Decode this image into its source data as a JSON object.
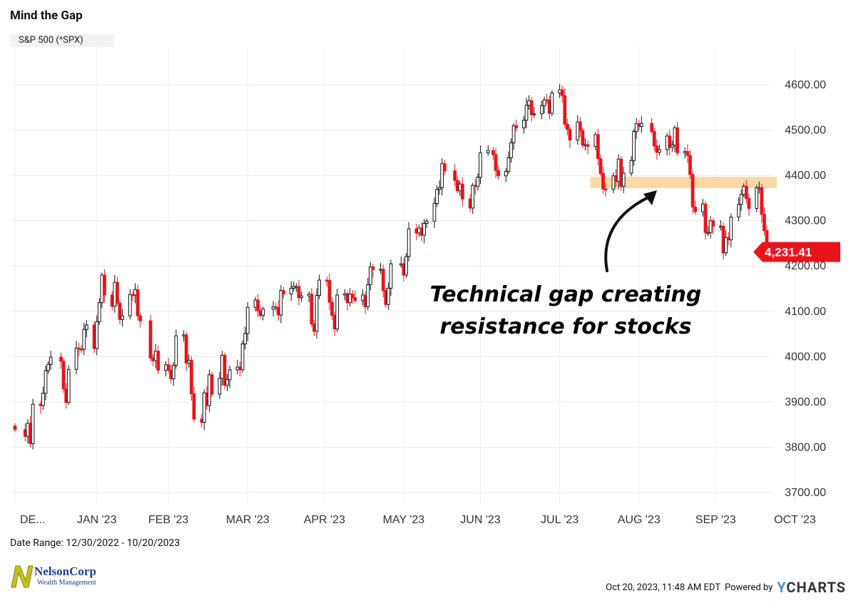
{
  "title": "Mind the Gap",
  "series_label": "S&P 500 (^SPX)",
  "date_range_text": "Date Range: 12/30/2022 - 10/20/2023",
  "footer": {
    "timestamp": "Oct 20, 2023, 11:48 AM EDT",
    "powered_by": "Powered by",
    "brand_y": "Y",
    "brand_rest": "CHARTS"
  },
  "logo": {
    "name": "NelsonCorp",
    "subtitle": "Wealth Management"
  },
  "annotation": {
    "line1": "Technical gap creating",
    "line2": "resistance for stocks"
  },
  "colors": {
    "up": "#111111",
    "down": "#e8141c",
    "gap_zone": "#fbd9a6",
    "last_price_bg": "#e8141c"
  },
  "chart_data": {
    "type": "candlestick",
    "title": "Mind the Gap",
    "series_name": "S&P 500 (^SPX)",
    "ylim": [
      3670,
      4680
    ],
    "y_ticks": [
      "3700.00",
      "3800.00",
      "3900.00",
      "4000.00",
      "4100.00",
      "4200.00",
      "4300.00",
      "4400.00",
      "4500.00",
      "4600.00"
    ],
    "x_ticks": [
      "DE...",
      "JAN '23",
      "FEB '23",
      "MAR '23",
      "APR '23",
      "MAY '23",
      "JUN '23",
      "JUL '23",
      "AUG '23",
      "SEP '23",
      "OCT '23"
    ],
    "last_price": "4,231.41",
    "gap_zone": {
      "low": 4372,
      "high": 4397,
      "start": "2023-08-17",
      "end": "2023-10-20"
    },
    "grid": true,
    "annotation_text": "Technical gap creating resistance for stocks",
    "closes": [
      [
        "2022-12-30",
        3839
      ],
      [
        "2023-01-03",
        3824
      ],
      [
        "2023-01-04",
        3853
      ],
      [
        "2023-01-05",
        3808
      ],
      [
        "2023-01-06",
        3895
      ],
      [
        "2023-01-09",
        3892
      ],
      [
        "2023-01-10",
        3919
      ],
      [
        "2023-01-11",
        3969
      ],
      [
        "2023-01-12",
        3983
      ],
      [
        "2023-01-13",
        3999
      ],
      [
        "2023-01-17",
        3990
      ],
      [
        "2023-01-18",
        3929
      ],
      [
        "2023-01-19",
        3899
      ],
      [
        "2023-01-20",
        3972
      ],
      [
        "2023-01-23",
        4019
      ],
      [
        "2023-01-24",
        4017
      ],
      [
        "2023-01-25",
        4016
      ],
      [
        "2023-01-26",
        4060
      ],
      [
        "2023-01-27",
        4070
      ],
      [
        "2023-01-30",
        4018
      ],
      [
        "2023-01-31",
        4077
      ],
      [
        "2023-02-01",
        4119
      ],
      [
        "2023-02-02",
        4180
      ],
      [
        "2023-02-03",
        4136
      ],
      [
        "2023-02-06",
        4111
      ],
      [
        "2023-02-07",
        4164
      ],
      [
        "2023-02-08",
        4118
      ],
      [
        "2023-02-09",
        4082
      ],
      [
        "2023-02-10",
        4090
      ],
      [
        "2023-02-13",
        4137
      ],
      [
        "2023-02-14",
        4136
      ],
      [
        "2023-02-15",
        4148
      ],
      [
        "2023-02-16",
        4090
      ],
      [
        "2023-02-17",
        4079
      ],
      [
        "2023-02-21",
        3997
      ],
      [
        "2023-02-22",
        3991
      ],
      [
        "2023-02-23",
        4012
      ],
      [
        "2023-02-24",
        3970
      ],
      [
        "2023-02-27",
        3982
      ],
      [
        "2023-02-28",
        3970
      ],
      [
        "2023-03-01",
        3951
      ],
      [
        "2023-03-02",
        3981
      ],
      [
        "2023-03-03",
        4046
      ],
      [
        "2023-03-06",
        4048
      ],
      [
        "2023-03-07",
        3986
      ],
      [
        "2023-03-08",
        3992
      ],
      [
        "2023-03-09",
        3918
      ],
      [
        "2023-03-10",
        3862
      ],
      [
        "2023-03-13",
        3855
      ],
      [
        "2023-03-14",
        3920
      ],
      [
        "2023-03-15",
        3892
      ],
      [
        "2023-03-16",
        3960
      ],
      [
        "2023-03-17",
        3917
      ],
      [
        "2023-03-20",
        3952
      ],
      [
        "2023-03-21",
        4003
      ],
      [
        "2023-03-22",
        3937
      ],
      [
        "2023-03-23",
        3949
      ],
      [
        "2023-03-24",
        3971
      ],
      [
        "2023-03-27",
        3977
      ],
      [
        "2023-03-28",
        3971
      ],
      [
        "2023-03-29",
        4028
      ],
      [
        "2023-03-30",
        4051
      ],
      [
        "2023-03-31",
        4109
      ],
      [
        "2023-04-03",
        4125
      ],
      [
        "2023-04-04",
        4101
      ],
      [
        "2023-04-05",
        4091
      ],
      [
        "2023-04-06",
        4105
      ],
      [
        "2023-04-10",
        4110
      ],
      [
        "2023-04-11",
        4108
      ],
      [
        "2023-04-12",
        4092
      ],
      [
        "2023-04-13",
        4146
      ],
      [
        "2023-04-14",
        4138
      ],
      [
        "2023-04-17",
        4151
      ],
      [
        "2023-04-18",
        4155
      ],
      [
        "2023-04-19",
        4155
      ],
      [
        "2023-04-20",
        4130
      ],
      [
        "2023-04-21",
        4134
      ],
      [
        "2023-04-24",
        4138
      ],
      [
        "2023-04-25",
        4072
      ],
      [
        "2023-04-26",
        4056
      ],
      [
        "2023-04-27",
        4135
      ],
      [
        "2023-04-28",
        4169
      ],
      [
        "2023-05-01",
        4168
      ],
      [
        "2023-05-02",
        4120
      ],
      [
        "2023-05-03",
        4091
      ],
      [
        "2023-05-04",
        4061
      ],
      [
        "2023-05-05",
        4136
      ],
      [
        "2023-05-08",
        4139
      ],
      [
        "2023-05-09",
        4119
      ],
      [
        "2023-05-10",
        4138
      ],
      [
        "2023-05-11",
        4130
      ],
      [
        "2023-05-12",
        4124
      ],
      [
        "2023-05-15",
        4136
      ],
      [
        "2023-05-16",
        4110
      ],
      [
        "2023-05-17",
        4159
      ],
      [
        "2023-05-18",
        4198
      ],
      [
        "2023-05-19",
        4192
      ],
      [
        "2023-05-22",
        4193
      ],
      [
        "2023-05-23",
        4146
      ],
      [
        "2023-05-24",
        4115
      ],
      [
        "2023-05-25",
        4151
      ],
      [
        "2023-05-26",
        4205
      ],
      [
        "2023-05-30",
        4205
      ],
      [
        "2023-05-31",
        4180
      ],
      [
        "2023-06-01",
        4221
      ],
      [
        "2023-06-02",
        4282
      ],
      [
        "2023-06-05",
        4273
      ],
      [
        "2023-06-06",
        4284
      ],
      [
        "2023-06-07",
        4268
      ],
      [
        "2023-06-08",
        4294
      ],
      [
        "2023-06-09",
        4299
      ],
      [
        "2023-06-12",
        4338
      ],
      [
        "2023-06-13",
        4369
      ],
      [
        "2023-06-14",
        4373
      ],
      [
        "2023-06-15",
        4426
      ],
      [
        "2023-06-16",
        4410
      ],
      [
        "2023-06-20",
        4389
      ],
      [
        "2023-06-21",
        4366
      ],
      [
        "2023-06-22",
        4381
      ],
      [
        "2023-06-23",
        4348
      ],
      [
        "2023-06-26",
        4328
      ],
      [
        "2023-06-27",
        4378
      ],
      [
        "2023-06-28",
        4376
      ],
      [
        "2023-06-29",
        4396
      ],
      [
        "2023-06-30",
        4450
      ],
      [
        "2023-07-03",
        4455
      ],
      [
        "2023-07-05",
        4446
      ],
      [
        "2023-07-06",
        4411
      ],
      [
        "2023-07-07",
        4399
      ],
      [
        "2023-07-10",
        4409
      ],
      [
        "2023-07-11",
        4439
      ],
      [
        "2023-07-12",
        4472
      ],
      [
        "2023-07-13",
        4510
      ],
      [
        "2023-07-14",
        4505
      ],
      [
        "2023-07-17",
        4522
      ],
      [
        "2023-07-18",
        4555
      ],
      [
        "2023-07-19",
        4565
      ],
      [
        "2023-07-20",
        4534
      ],
      [
        "2023-07-21",
        4536
      ],
      [
        "2023-07-24",
        4554
      ],
      [
        "2023-07-25",
        4567
      ],
      [
        "2023-07-26",
        4566
      ],
      [
        "2023-07-27",
        4537
      ],
      [
        "2023-07-28",
        4582
      ],
      [
        "2023-07-31",
        4589
      ],
      [
        "2023-08-01",
        4576
      ],
      [
        "2023-08-02",
        4513
      ],
      [
        "2023-08-03",
        4502
      ],
      [
        "2023-08-04",
        4478
      ],
      [
        "2023-08-07",
        4518
      ],
      [
        "2023-08-08",
        4499
      ],
      [
        "2023-08-09",
        4467
      ],
      [
        "2023-08-10",
        4468
      ],
      [
        "2023-08-11",
        4464
      ],
      [
        "2023-08-14",
        4490
      ],
      [
        "2023-08-15",
        4437
      ],
      [
        "2023-08-16",
        4404
      ],
      [
        "2023-08-17",
        4370
      ],
      [
        "2023-08-18",
        4369
      ],
      [
        "2023-08-21",
        4399
      ],
      [
        "2023-08-22",
        4387
      ],
      [
        "2023-08-23",
        4436
      ],
      [
        "2023-08-24",
        4376
      ],
      [
        "2023-08-25",
        4405
      ],
      [
        "2023-08-28",
        4433
      ],
      [
        "2023-08-29",
        4497
      ],
      [
        "2023-08-30",
        4514
      ],
      [
        "2023-08-31",
        4508
      ],
      [
        "2023-09-01",
        4515
      ],
      [
        "2023-09-05",
        4497
      ],
      [
        "2023-09-06",
        4465
      ],
      [
        "2023-09-07",
        4451
      ],
      [
        "2023-09-08",
        4457
      ],
      [
        "2023-09-11",
        4487
      ],
      [
        "2023-09-12",
        4462
      ],
      [
        "2023-09-13",
        4467
      ],
      [
        "2023-09-14",
        4505
      ],
      [
        "2023-09-15",
        4450
      ],
      [
        "2023-09-18",
        4453
      ],
      [
        "2023-09-19",
        4444
      ],
      [
        "2023-09-20",
        4402
      ],
      [
        "2023-09-21",
        4330
      ],
      [
        "2023-09-22",
        4320
      ],
      [
        "2023-09-25",
        4337
      ],
      [
        "2023-09-26",
        4274
      ],
      [
        "2023-09-27",
        4274
      ],
      [
        "2023-09-28",
        4300
      ],
      [
        "2023-09-29",
        4288
      ],
      [
        "2023-10-02",
        4288
      ],
      [
        "2023-10-03",
        4229
      ],
      [
        "2023-10-04",
        4263
      ],
      [
        "2023-10-05",
        4258
      ],
      [
        "2023-10-06",
        4308
      ],
      [
        "2023-10-09",
        4336
      ],
      [
        "2023-10-10",
        4358
      ],
      [
        "2023-10-11",
        4376
      ],
      [
        "2023-10-12",
        4349
      ],
      [
        "2023-10-13",
        4327
      ],
      [
        "2023-10-16",
        4373
      ],
      [
        "2023-10-17",
        4373
      ],
      [
        "2023-10-18",
        4314
      ],
      [
        "2023-10-19",
        4278
      ],
      [
        "2023-10-20",
        4231
      ]
    ]
  }
}
